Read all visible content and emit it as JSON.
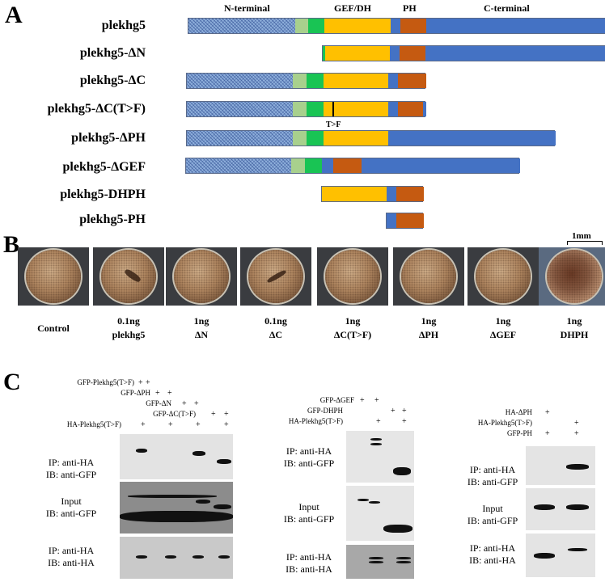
{
  "panels": {
    "a": "A",
    "b": "B",
    "c": "C"
  },
  "regions": {
    "n_terminal": "N-terminal",
    "gef_dh": "GEF/DH",
    "ph": "PH",
    "c_terminal": "C-terminal",
    "mutation": "T>F"
  },
  "constructs": [
    "plekhg5",
    "plekhg5-ΔN",
    "plekhg5-ΔC",
    "plekhg5-ΔC(T>F)",
    "plekhg5-ΔPH",
    "plekhg5-ΔGEF",
    "plekhg5-DHPH",
    "plekhg5-PH"
  ],
  "scale_bar": "1mm",
  "embryos": [
    {
      "line1": "Control",
      "line2": ""
    },
    {
      "line1": "0.1ng",
      "line2": "plekhg5"
    },
    {
      "line1": "1ng",
      "line2": "ΔN"
    },
    {
      "line1": "0.1ng",
      "line2": "ΔC"
    },
    {
      "line1": "1ng",
      "line2": "ΔC(T>F)"
    },
    {
      "line1": "1ng",
      "line2": "ΔPH"
    },
    {
      "line1": "1ng",
      "line2": "ΔGEF"
    },
    {
      "line1": "1ng",
      "line2": "DHPH"
    }
  ],
  "blot1": {
    "treatments": [
      "GFP-Plekhg5(T>F)",
      "GFP-ΔPH",
      "GFP-ΔN",
      "GFP-ΔC(T>F)",
      "HA-Plekhg5(T>F)"
    ],
    "labels": [
      {
        "l1": "IP: anti-HA",
        "l2": "IB: anti-GFP"
      },
      {
        "l1": "Input",
        "l2": "IB: anti-GFP"
      },
      {
        "l1": "IP: anti-HA",
        "l2": "IB: anti-HA"
      }
    ]
  },
  "blot2": {
    "treatments": [
      "GFP-ΔGEF",
      "GFP-DHPH",
      "HA-Plekhg5(T>F)"
    ],
    "labels": [
      {
        "l1": "IP: anti-HA",
        "l2": "IB: anti-GFP"
      },
      {
        "l1": "Input",
        "l2": "IB: anti-GFP"
      },
      {
        "l1": "IP: anti-HA",
        "l2": "IB: anti-HA"
      }
    ]
  },
  "blot3": {
    "treatments": [
      "HA-ΔPH",
      "HA-Plekhg5(T>F)",
      "GFP-PH"
    ],
    "labels": [
      {
        "l1": "IP: anti-HA",
        "l2": "IB: anti-GFP"
      },
      {
        "l1": "Input",
        "l2": "IB: anti-GFP"
      },
      {
        "l1": "IP: anti-HA",
        "l2": "IB: anti-HA"
      }
    ]
  },
  "plus_sign": "+"
}
